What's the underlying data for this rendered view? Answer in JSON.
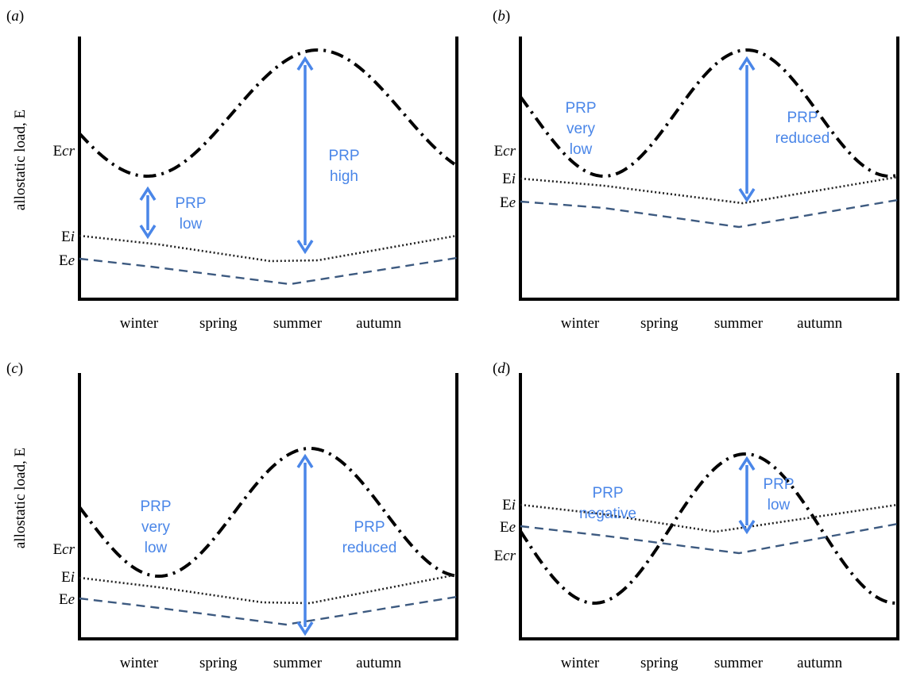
{
  "colors": {
    "axis": "#000000",
    "critical": "#000000",
    "internal": "#222222",
    "environment": "#3d5a80",
    "annotation": "#4a86e8"
  },
  "y_axis_label": "allostatic load, E",
  "seasons": [
    "winter",
    "spring",
    "summer",
    "autumn"
  ],
  "panels": [
    {
      "tag": "(a)",
      "show_ylabel": true,
      "level_labels": {
        "cr": "Ecr",
        "i": "Ei",
        "e": "Ee"
      },
      "annotations": [
        {
          "lines": [
            "PRP",
            "low"
          ]
        },
        {
          "lines": [
            "PRP",
            "high"
          ]
        }
      ]
    },
    {
      "tag": "(b)",
      "show_ylabel": false,
      "level_labels": {
        "cr": "Ecr",
        "i": "Ei",
        "e": "Ee"
      },
      "annotations": [
        {
          "lines": [
            "PRP",
            "very",
            "low"
          ]
        },
        {
          "lines": [
            "PRP",
            "reduced"
          ]
        }
      ]
    },
    {
      "tag": "(c)",
      "show_ylabel": true,
      "level_labels": {
        "cr": "Ecr",
        "i": "Ei",
        "e": "Ee"
      },
      "annotations": [
        {
          "lines": [
            "PRP",
            "very",
            "low"
          ]
        },
        {
          "lines": [
            "PRP",
            "reduced"
          ]
        }
      ]
    },
    {
      "tag": "(d)",
      "show_ylabel": false,
      "level_labels": {
        "i": "Ei",
        "e": "Ee",
        "cr": "Ecr"
      },
      "annotations": [
        {
          "lines": [
            "PRP",
            "negative"
          ]
        },
        {
          "lines": [
            "PRP",
            "low"
          ]
        }
      ]
    }
  ]
}
